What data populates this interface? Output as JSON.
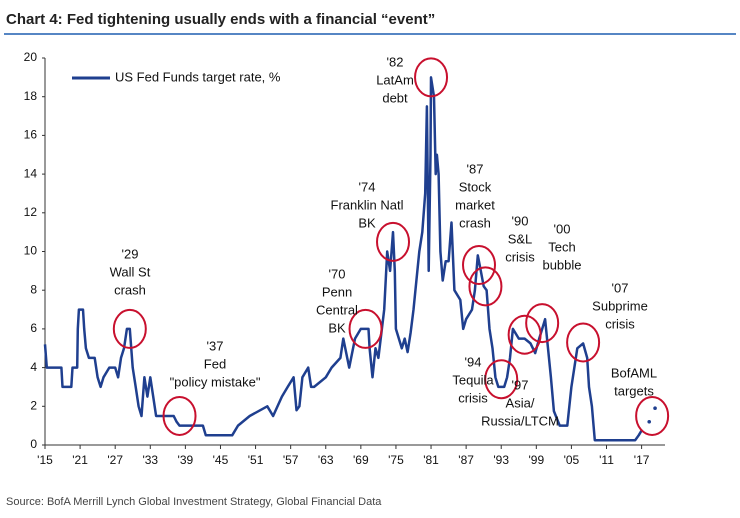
{
  "chart_data": {
    "type": "line",
    "title": "Chart 4: Fed tightening usually ends with a financial “event”",
    "source": "Source: BofA Merrill Lynch Global Investment Strategy, Global Financial Data",
    "xlim": [
      1915,
      2021
    ],
    "xticks": [
      {
        "value": 1915,
        "label": "'15"
      },
      {
        "value": 1921,
        "label": "'21"
      },
      {
        "value": 1927,
        "label": "'27"
      },
      {
        "value": 1933,
        "label": "'33"
      },
      {
        "value": 1939,
        "label": "'39"
      },
      {
        "value": 1945,
        "label": "'45"
      },
      {
        "value": 1951,
        "label": "'51"
      },
      {
        "value": 1957,
        "label": "'57"
      },
      {
        "value": 1963,
        "label": "'63"
      },
      {
        "value": 1969,
        "label": "'69"
      },
      {
        "value": 1975,
        "label": "'75"
      },
      {
        "value": 1981,
        "label": "'81"
      },
      {
        "value": 1987,
        "label": "'87"
      },
      {
        "value": 1993,
        "label": "'93"
      },
      {
        "value": 1999,
        "label": "'99"
      },
      {
        "value": 2005,
        "label": "'05"
      },
      {
        "value": 2011,
        "label": "'11"
      },
      {
        "value": 2017,
        "label": "'17"
      }
    ],
    "ylim": [
      0,
      20
    ],
    "yticks": [
      0,
      2,
      4,
      6,
      8,
      10,
      12,
      14,
      16,
      18,
      20
    ],
    "grid": false,
    "legend": "top-left",
    "series": [
      {
        "name": "US Fed Funds target rate, %",
        "color": "#1f3f8f",
        "x": [
          1915,
          1915.3,
          1917.8,
          1918,
          1919.5,
          1919.7,
          1920.5,
          1920.6,
          1920.8,
          1921.5,
          1921.7,
          1922,
          1922.5,
          1923.5,
          1924,
          1924.5,
          1925,
          1926,
          1927,
          1927.5,
          1928,
          1928.5,
          1929,
          1929.5,
          1930,
          1930.5,
          1931,
          1931.5,
          1932,
          1932.5,
          1933,
          1933.5,
          1934,
          1935,
          1937,
          1937.5,
          1938,
          1942,
          1942.5,
          1947,
          1948,
          1950,
          1953,
          1954,
          1955.5,
          1956.5,
          1957.5,
          1958,
          1958.5,
          1959,
          1960,
          1960.5,
          1961,
          1963,
          1964,
          1965.5,
          1966,
          1967,
          1968,
          1969,
          1970.3,
          1970.5,
          1971,
          1971.5,
          1972,
          1973,
          1973.5,
          1974,
          1974.5,
          1974.8,
          1975,
          1976,
          1976.5,
          1977,
          1977.5,
          1978,
          1978.5,
          1979,
          1979.5,
          1980,
          1980.3,
          1980.6,
          1980.9,
          1981,
          1981.5,
          1981.8,
          1982,
          1982.3,
          1982.6,
          1983,
          1983.5,
          1984,
          1984.5,
          1985,
          1986,
          1986.5,
          1987,
          1988,
          1988.5,
          1989,
          1989.5,
          1990,
          1990.5,
          1991,
          1991.5,
          1992,
          1992.5,
          1993.5,
          1994,
          1994.5,
          1995,
          1996,
          1997,
          1998,
          1998.8,
          1999.5,
          2000,
          2000.5,
          2001,
          2001.5,
          2002,
          2003,
          2004.3,
          2005,
          2006,
          2007,
          2007.7,
          2008,
          2008.5,
          2009,
          2015.9,
          2016.5,
          2017
        ],
        "values": [
          5.2,
          4,
          4,
          3,
          3,
          4,
          4,
          6,
          7,
          7,
          6,
          5,
          4.5,
          4.5,
          3.5,
          3,
          3.5,
          4,
          4,
          3.5,
          4.5,
          5,
          6,
          6,
          4,
          3,
          2,
          1.5,
          3.5,
          2.5,
          3.5,
          2.5,
          1.5,
          1.5,
          1.5,
          1.2,
          1,
          1,
          0.5,
          0.5,
          1,
          1.5,
          2,
          1.5,
          2.5,
          3,
          3.5,
          1.8,
          2,
          3.5,
          4,
          3,
          3,
          3.5,
          4,
          4.5,
          5.5,
          4,
          5.5,
          6,
          6,
          5,
          3.5,
          5,
          4.5,
          7,
          10,
          9,
          11,
          9,
          6,
          5,
          5.5,
          4.8,
          5.8,
          7,
          8.5,
          10,
          11,
          13,
          17.5,
          9,
          15,
          19,
          18,
          14,
          15,
          14,
          10,
          8.5,
          9.5,
          9.5,
          11.5,
          8,
          7.5,
          6,
          6.5,
          7,
          8,
          9.8,
          9,
          8.2,
          8,
          6,
          5,
          3.5,
          3,
          3,
          3.5,
          4.5,
          6,
          5.5,
          5.5,
          5.25,
          4.75,
          5.5,
          6,
          6.5,
          5,
          3.5,
          1.75,
          1,
          1,
          3,
          5,
          5.25,
          4.5,
          3,
          2,
          0.25,
          0.25,
          0.5,
          0.75
        ]
      }
    ],
    "targets": {
      "x": [
        2018.3,
        2019.3
      ],
      "values": [
        1.2,
        1.9
      ]
    },
    "annotations": [
      {
        "text": [
          "'29",
          "Wall St",
          "crash"
        ],
        "x": 1929.5,
        "y": 6
      },
      {
        "text": [
          "'37",
          "Fed",
          "\"policy mistake\""
        ],
        "x": 1938,
        "y": 1.5
      },
      {
        "text": [
          "'70",
          "Penn",
          "Central",
          "BK"
        ],
        "x": 1969.8,
        "y": 6
      },
      {
        "text": [
          "'74",
          "Franklin Natl",
          "BK"
        ],
        "x": 1974.5,
        "y": 10.5
      },
      {
        "text": [
          "'82",
          "LatAm",
          "debt"
        ],
        "x": 1981,
        "y": 19
      },
      {
        "text": [
          "'87",
          "Stock",
          "market",
          "crash"
        ],
        "x": 1989.2,
        "y": 9.3
      },
      {
        "text": [
          "'90",
          "S&L",
          "crisis"
        ],
        "x": 1990.3,
        "y": 8.2
      },
      {
        "text": [
          "'94",
          "Tequila",
          "crisis"
        ],
        "x": 1993,
        "y": 3.4
      },
      {
        "text": [
          "'97",
          "Asia/",
          "Russia/LTCM"
        ],
        "x": 1997,
        "y": 5.7
      },
      {
        "text": [
          "'00",
          "Tech",
          "bubble"
        ],
        "x": 2000,
        "y": 6.3
      },
      {
        "text": [
          "'07",
          "Subprime",
          "crisis"
        ],
        "x": 2007,
        "y": 5.3
      },
      {
        "text": [
          "BofAML",
          "targets"
        ],
        "x": 2018.8,
        "y": 1.5
      }
    ]
  }
}
